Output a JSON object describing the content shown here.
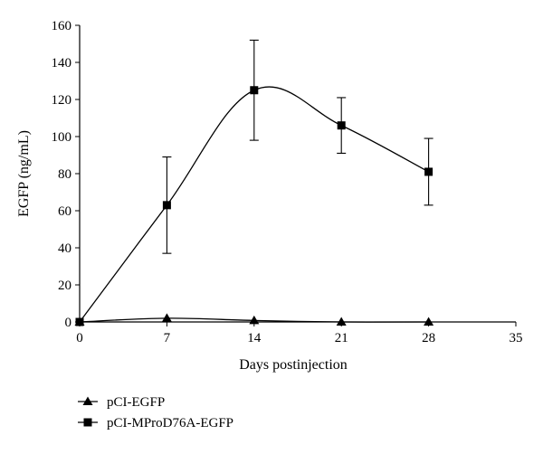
{
  "chart_data": {
    "type": "line",
    "xlabel": "Days postinjection",
    "ylabel": "EGFP (ng/mL)",
    "xlim": [
      0,
      35
    ],
    "ylim": [
      0,
      160
    ],
    "x_ticks": [
      0,
      7,
      14,
      21,
      28,
      35
    ],
    "y_ticks": [
      0,
      20,
      40,
      60,
      80,
      100,
      120,
      140,
      160
    ],
    "grid": false,
    "legend_position": "bottom-left",
    "series": [
      {
        "name": "pCI-EGFP",
        "marker": "triangle",
        "x": [
          0,
          7,
          14,
          21,
          28
        ],
        "y": [
          0,
          2,
          0.8,
          0,
          0
        ]
      },
      {
        "name": "pCI-MProD76A-EGFP",
        "marker": "square",
        "x": [
          0,
          7,
          14,
          21,
          28
        ],
        "y": [
          0,
          63,
          125,
          106,
          81
        ],
        "error": [
          0,
          26,
          27,
          15,
          18
        ]
      }
    ]
  }
}
